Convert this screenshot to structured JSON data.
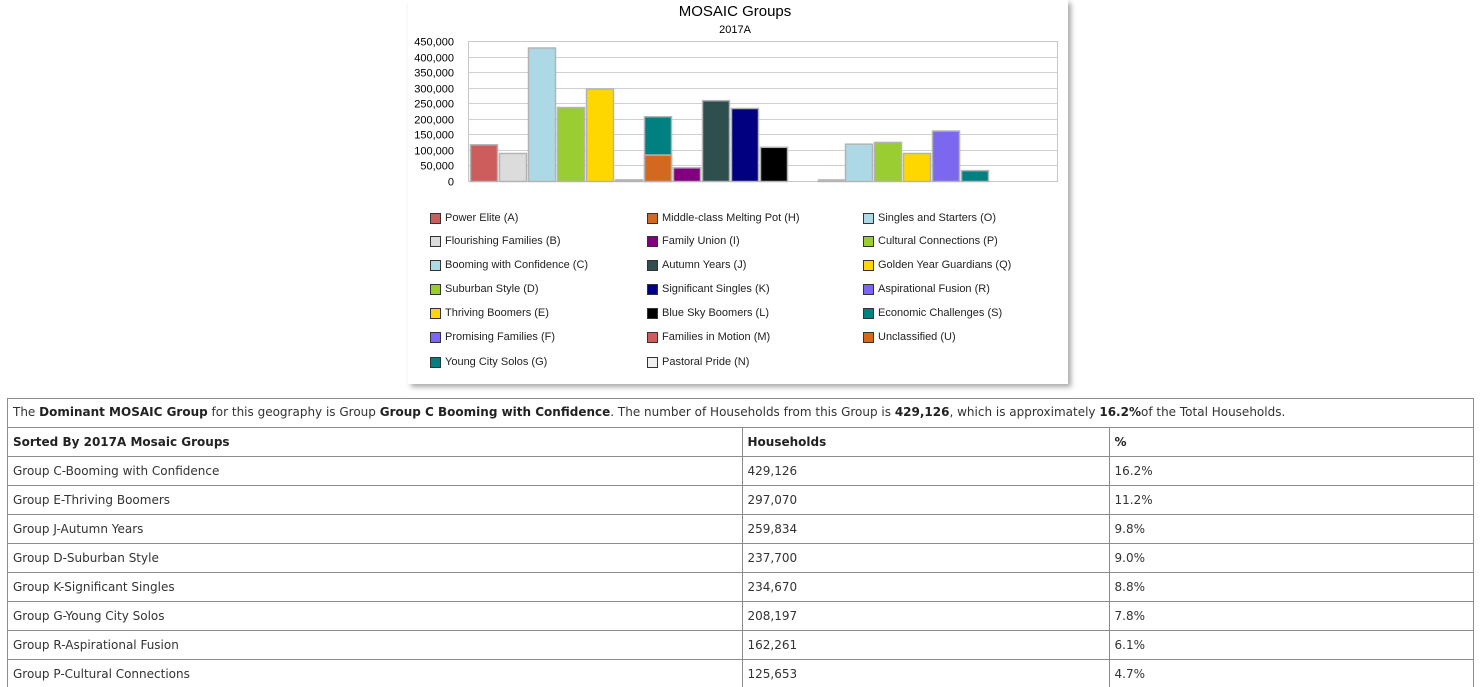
{
  "chart_data": {
    "type": "bar",
    "title": "MOSAIC Groups",
    "subtitle": "2017A",
    "ylim": [
      0,
      450000
    ],
    "yticks": [
      0,
      50000,
      100000,
      150000,
      200000,
      250000,
      300000,
      350000,
      400000,
      450000
    ],
    "ytick_labels": [
      "0",
      "50,000",
      "100,000",
      "150,000",
      "200,000",
      "250,000",
      "300,000",
      "350,000",
      "400,000",
      "450,000"
    ],
    "grid": true,
    "legend_placement": "bottom",
    "series": [
      {
        "name": "Power Elite (A)",
        "value": 118000,
        "color": "#cd5c5c"
      },
      {
        "name": "Flourishing Families (B)",
        "value": 90000,
        "color": "#dcdcdc"
      },
      {
        "name": "Booming with Confidence (C)",
        "value": 429126,
        "color": "#add8e6"
      },
      {
        "name": "Suburban Style (D)",
        "value": 237700,
        "color": "#9acd32"
      },
      {
        "name": "Thriving Boomers (E)",
        "value": 297070,
        "color": "#ffd700"
      },
      {
        "name": "Promising Families (F)",
        "value": 5000,
        "color": "#7b68ee"
      },
      {
        "name": "Young City Solos (G)",
        "value": 208197,
        "color": "#008080"
      },
      {
        "name": "Middle-class Melting Pot (H)",
        "value": 85000,
        "color": "#d2691e"
      },
      {
        "name": "Family Union (I)",
        "value": 44000,
        "color": "#800080"
      },
      {
        "name": "Autumn Years (J)",
        "value": 259834,
        "color": "#2f4f4f"
      },
      {
        "name": "Significant Singles (K)",
        "value": 234670,
        "color": "#000080"
      },
      {
        "name": "Blue Sky Boomers (L)",
        "value": 110000,
        "color": "#000000"
      },
      {
        "name": "Families in Motion (M)",
        "value": 0,
        "color": "#cd5c5c"
      },
      {
        "name": "Pastoral Pride (N)",
        "value": 5000,
        "color": "#f0f0f0"
      },
      {
        "name": "Singles and Starters (O)",
        "value": 120000,
        "color": "#add8e6"
      },
      {
        "name": "Cultural Connections (P)",
        "value": 125653,
        "color": "#9acd32"
      },
      {
        "name": "Golden Year Guardians (Q)",
        "value": 90000,
        "color": "#ffd700"
      },
      {
        "name": "Aspirational Fusion (R)",
        "value": 162261,
        "color": "#7b68ee"
      },
      {
        "name": "Economic Challenges (S)",
        "value": 35000,
        "color": "#008080"
      },
      {
        "name": "Unclassified (U)",
        "value": 0,
        "color": "#d2691e"
      }
    ]
  },
  "summary": {
    "prefix": "The ",
    "label_bold": "Dominant MOSAIC Group",
    "mid1": " for this geography is Group ",
    "group_bold": "Group C Booming with Confidence",
    "mid2": ". The number of Households from this Group is ",
    "households_bold": "429,126",
    "mid3": ", which is approximately ",
    "percent_bold": "16.2%",
    "suffix": "of the Total Households."
  },
  "table": {
    "headers": [
      "Sorted By 2017A Mosaic Groups",
      "Households",
      "%"
    ],
    "rows": [
      [
        "Group C-Booming with Confidence",
        "429,126",
        "16.2%"
      ],
      [
        "Group E-Thriving Boomers",
        "297,070",
        "11.2%"
      ],
      [
        "Group J-Autumn Years",
        "259,834",
        "9.8%"
      ],
      [
        "Group D-Suburban Style",
        "237,700",
        "9.0%"
      ],
      [
        "Group K-Significant Singles",
        "234,670",
        "8.8%"
      ],
      [
        "Group G-Young City Solos",
        "208,197",
        "7.8%"
      ],
      [
        "Group R-Aspirational Fusion",
        "162,261",
        "6.1%"
      ],
      [
        "Group P-Cultural Connections",
        "125,653",
        "4.7%"
      ]
    ]
  }
}
